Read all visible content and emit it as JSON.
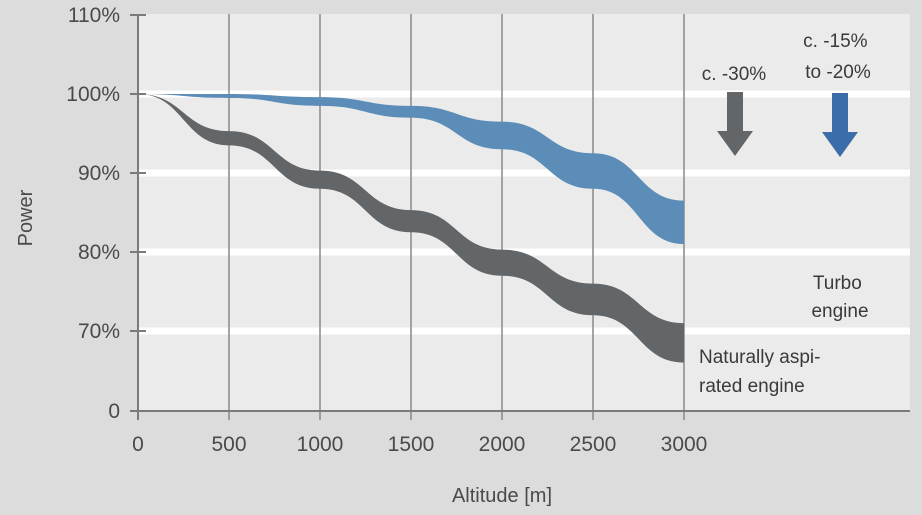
{
  "chart_data": {
    "type": "area",
    "xlabel": "Altitude [m]",
    "ylabel": "Power",
    "x_ticks": [
      "0",
      "500",
      "1000",
      "1500",
      "2000",
      "2500",
      "3000"
    ],
    "y_ticks": [
      {
        "value": 0,
        "label": "0"
      },
      {
        "value": 70,
        "label": "70%"
      },
      {
        "value": 80,
        "label": "80%"
      },
      {
        "value": 90,
        "label": "90%"
      },
      {
        "value": 100,
        "label": "100%"
      },
      {
        "value": 110,
        "label": "110%"
      }
    ],
    "grid": true,
    "series": [
      {
        "label": "Naturally aspirated engine",
        "color": "#636668",
        "x": [
          0,
          500,
          1000,
          1500,
          2000,
          2500,
          3000
        ],
        "upper": [
          100,
          95.3,
          90.3,
          85.3,
          80.3,
          76,
          71
        ],
        "lower": [
          100,
          93.5,
          88,
          82.5,
          77,
          72,
          66
        ]
      },
      {
        "label": "Turbo engine",
        "color": "#5b8db8",
        "x": [
          0,
          500,
          1000,
          1500,
          2000,
          2500,
          3000
        ],
        "upper": [
          100,
          100,
          99.6,
          98.5,
          96.5,
          92.5,
          86.5
        ],
        "lower": [
          100,
          99.5,
          98.5,
          97,
          93,
          88,
          81
        ]
      }
    ],
    "annotations": [
      {
        "id": "na",
        "lines": [
          "c. -30%"
        ],
        "arrow_color": "#636668"
      },
      {
        "id": "turbo",
        "lines": [
          "c. -15%",
          "to -20%"
        ],
        "arrow_color": "#3b6ea8"
      }
    ],
    "series_labels": [
      {
        "id": "turbo",
        "lines": [
          "Turbo",
          "engine"
        ]
      },
      {
        "id": "na",
        "lines": [
          "Naturally aspi-",
          "rated engine"
        ]
      }
    ]
  }
}
